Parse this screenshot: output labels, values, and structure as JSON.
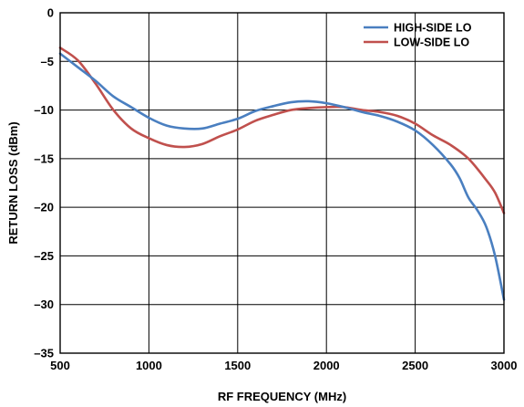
{
  "chart_data": {
    "type": "line",
    "title": "",
    "xlabel": "RF FREQUENCY (MHz)",
    "ylabel": "RETURN LOSS (dBm)",
    "xlim": [
      500,
      3000
    ],
    "ylim": [
      -35,
      0
    ],
    "xticks": [
      500,
      1000,
      1500,
      2000,
      2500,
      3000
    ],
    "xtick_labels": [
      "500",
      "1000",
      "1500",
      "2000",
      "2500",
      "3000"
    ],
    "yticks": [
      0,
      -5,
      -10,
      -15,
      -20,
      -25,
      -30,
      -35
    ],
    "ytick_labels": [
      "0",
      "–5",
      "–10",
      "–15",
      "–20",
      "–25",
      "–30",
      "–35"
    ],
    "grid": true,
    "legend_position": "top-right",
    "series": [
      {
        "name": "HIGH-SIDE LO",
        "color": "#4a7fc0",
        "x": [
          500,
          600,
          700,
          800,
          900,
          1000,
          1100,
          1200,
          1300,
          1400,
          1500,
          1600,
          1700,
          1800,
          1900,
          2000,
          2100,
          2200,
          2300,
          2400,
          2500,
          2600,
          2700,
          2750,
          2800,
          2850,
          2900,
          2950,
          3000
        ],
        "y": [
          -4.2,
          -5.6,
          -7.0,
          -8.6,
          -9.7,
          -10.8,
          -11.6,
          -11.9,
          -11.9,
          -11.4,
          -10.9,
          -10.1,
          -9.6,
          -9.2,
          -9.1,
          -9.3,
          -9.7,
          -10.2,
          -10.6,
          -11.2,
          -12.1,
          -13.6,
          -15.6,
          -17.0,
          -19.0,
          -20.3,
          -22.0,
          -25.0,
          -29.5
        ]
      },
      {
        "name": "LOW-SIDE LO",
        "color": "#c0504d",
        "x": [
          500,
          600,
          700,
          800,
          900,
          1000,
          1100,
          1200,
          1300,
          1400,
          1500,
          1600,
          1700,
          1800,
          1900,
          2000,
          2100,
          2200,
          2300,
          2400,
          2500,
          2600,
          2700,
          2800,
          2900,
          2950,
          3000
        ],
        "y": [
          -3.6,
          -4.9,
          -7.3,
          -10.0,
          -11.9,
          -12.9,
          -13.6,
          -13.8,
          -13.5,
          -12.7,
          -12.0,
          -11.1,
          -10.5,
          -10.0,
          -9.8,
          -9.7,
          -9.7,
          -10.0,
          -10.2,
          -10.6,
          -11.4,
          -12.6,
          -13.6,
          -15.0,
          -17.2,
          -18.5,
          -20.6
        ]
      }
    ]
  }
}
